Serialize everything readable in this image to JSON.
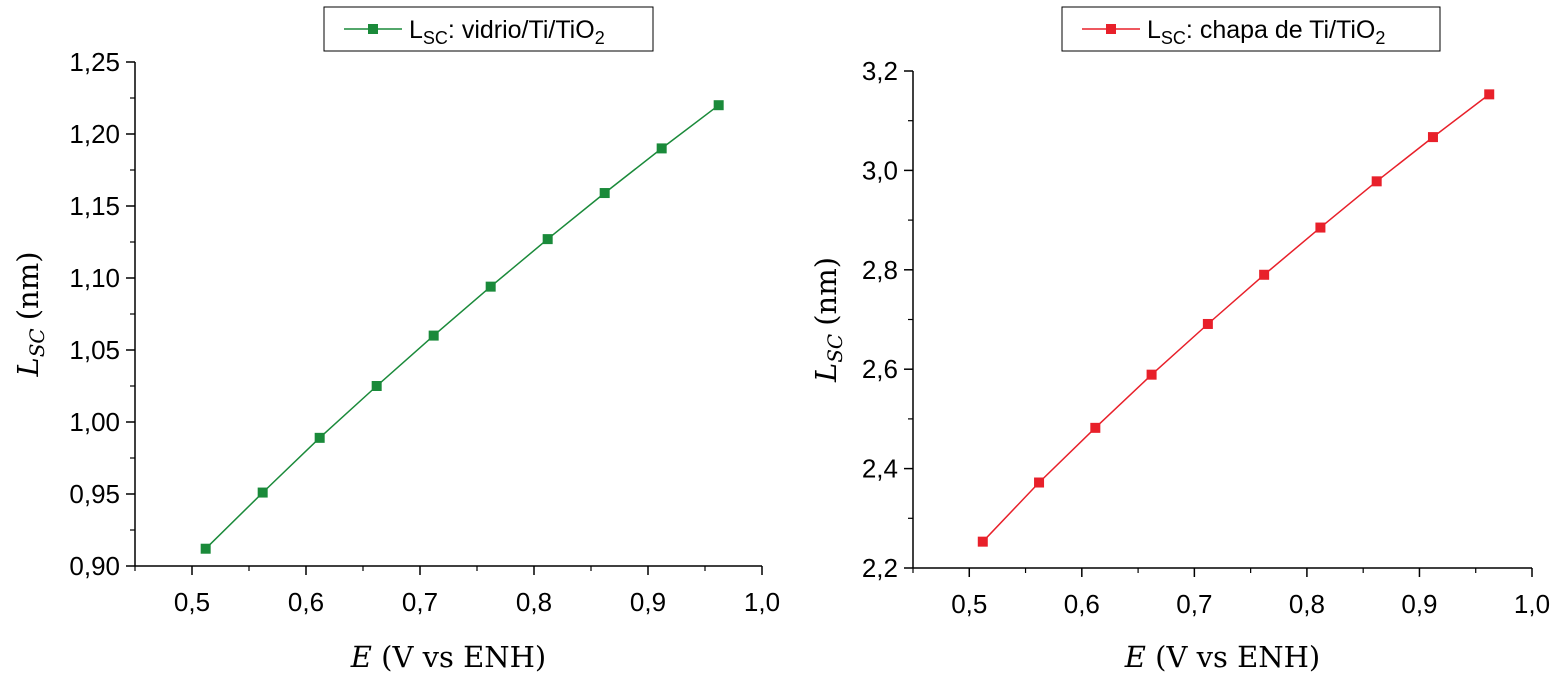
{
  "chart_data": [
    {
      "type": "line",
      "title": "",
      "xlabel": {
        "var": "E",
        "unit": "(V vs ENH)"
      },
      "ylabel": {
        "var": "L",
        "sub": "SC",
        "unit": "(nm)"
      },
      "xlim": [
        0.45,
        1.0
      ],
      "ylim": [
        0.9,
        1.25
      ],
      "xticks": [
        0.5,
        0.6,
        0.7,
        0.8,
        0.9,
        1.0
      ],
      "xtick_labels": [
        "0,5",
        "0,6",
        "0,7",
        "0,8",
        "0,9",
        "1,0"
      ],
      "yticks": [
        0.9,
        0.95,
        1.0,
        1.05,
        1.1,
        1.15,
        1.2,
        1.25
      ],
      "ytick_labels": [
        "0,90",
        "0,95",
        "1,00",
        "1,05",
        "1,10",
        "1,15",
        "1,20",
        "1,25"
      ],
      "legend": "top-center",
      "grid": false,
      "series": [
        {
          "name": {
            "main": "L",
            "sub": "SC",
            "rest": ": vidrio/Ti/TiO",
            "sub2": "2"
          },
          "color": "#1a8a3a",
          "marker": "square",
          "x": [
            0.512,
            0.562,
            0.612,
            0.662,
            0.712,
            0.762,
            0.812,
            0.862,
            0.912,
            0.962
          ],
          "y": [
            0.912,
            0.951,
            0.989,
            1.025,
            1.06,
            1.094,
            1.127,
            1.159,
            1.19,
            1.22
          ]
        }
      ]
    },
    {
      "type": "line",
      "title": "",
      "xlabel": {
        "var": "E",
        "unit": "(V vs ENH)"
      },
      "ylabel": {
        "var": "L",
        "sub": "SC",
        "unit": "(nm)"
      },
      "xlim": [
        0.45,
        1.0
      ],
      "ylim": [
        2.2,
        3.2
      ],
      "xticks": [
        0.5,
        0.6,
        0.7,
        0.8,
        0.9,
        1.0
      ],
      "xtick_labels": [
        "0,5",
        "0,6",
        "0,7",
        "0,8",
        "0,9",
        "1,0"
      ],
      "yticks": [
        2.2,
        2.4,
        2.6,
        2.8,
        3.0,
        3.2
      ],
      "ytick_labels": [
        "2,2",
        "2,4",
        "2,6",
        "2,8",
        "3,0",
        "3,2"
      ],
      "legend": "top-center",
      "grid": false,
      "series": [
        {
          "name": {
            "main": "L",
            "sub": "SC",
            "rest": ": chapa de Ti/TiO",
            "sub2": "2"
          },
          "color": "#e8202a",
          "marker": "square",
          "x": [
            0.512,
            0.562,
            0.612,
            0.662,
            0.712,
            0.762,
            0.812,
            0.862,
            0.912,
            0.962
          ],
          "y": [
            2.253,
            2.372,
            2.482,
            2.589,
            2.691,
            2.79,
            2.885,
            2.978,
            3.067,
            3.153
          ]
        }
      ]
    }
  ]
}
